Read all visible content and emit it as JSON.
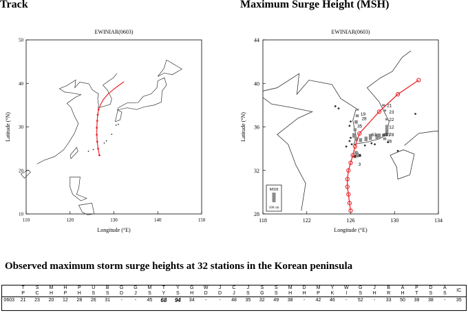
{
  "headings": {
    "track": "Track",
    "msh": "Maximum Surge Height (MSH)"
  },
  "track_map": {
    "title": "EWINIAR(0603)",
    "xlabel": "Longitude (°E)",
    "ylabel": "Latitude (°N)",
    "x_ticks": [
      "110",
      "120",
      "130",
      "140",
      "150"
    ],
    "y_ticks": [
      "50",
      "40",
      "30",
      "20",
      "10"
    ],
    "line_color": "#e8262b",
    "track_points": [
      {
        "lon": 126.7,
        "lat": 23.5
      },
      {
        "lon": 126.4,
        "lat": 25.0
      },
      {
        "lon": 126.2,
        "lat": 26.6
      },
      {
        "lon": 126.1,
        "lat": 28.2
      },
      {
        "lon": 126.1,
        "lat": 29.8
      },
      {
        "lon": 126.2,
        "lat": 31.4
      },
      {
        "lon": 126.3,
        "lat": 32.8
      },
      {
        "lon": 126.5,
        "lat": 34.0
      },
      {
        "lon": 127.0,
        "lat": 35.2
      },
      {
        "lon": 127.6,
        "lat": 36.3
      },
      {
        "lon": 128.6,
        "lat": 37.5
      },
      {
        "lon": 130.0,
        "lat": 38.7
      },
      {
        "lon": 131.2,
        "lat": 39.6
      },
      {
        "lon": 132.3,
        "lat": 40.4
      }
    ]
  },
  "msh_map": {
    "title": "EWINIAR(0603)",
    "xlabel": "Longitude (°E)",
    "ylabel": "Latitude (°N)",
    "x_ticks": [
      "118",
      "122",
      "126",
      "130",
      "134"
    ],
    "y_ticks": [
      "44",
      "40",
      "36",
      "32",
      "28"
    ],
    "line_color": "#e8262b",
    "bar_color": "#8c8c8c",
    "legend_label": "MSH",
    "legend_scale": "100 cm",
    "track_points": [
      {
        "lon": 126.0,
        "lat": 28.3
      },
      {
        "lon": 125.9,
        "lat": 29.0
      },
      {
        "lon": 125.8,
        "lat": 29.8
      },
      {
        "lon": 125.7,
        "lat": 30.5
      },
      {
        "lon": 125.7,
        "lat": 31.2
      },
      {
        "lon": 125.8,
        "lat": 32.0
      },
      {
        "lon": 126.0,
        "lat": 32.7
      },
      {
        "lon": 126.2,
        "lat": 33.4
      },
      {
        "lon": 126.4,
        "lat": 34.2
      },
      {
        "lon": 126.8,
        "lat": 35.4
      },
      {
        "lon": 128.6,
        "lat": 37.4
      },
      {
        "lon": 130.3,
        "lat": 39.0
      },
      {
        "lon": 132.2,
        "lat": 40.3
      }
    ],
    "surge_labels": [
      {
        "text": "21",
        "lon": 129.3,
        "lat": 38.0
      },
      {
        "text": "23",
        "lon": 129.5,
        "lat": 37.4
      },
      {
        "text": "19",
        "lon": 126.9,
        "lat": 37.2
      },
      {
        "text": "28",
        "lon": 127.0,
        "lat": 36.8
      },
      {
        "text": "22",
        "lon": 129.5,
        "lat": 36.7
      },
      {
        "text": "35",
        "lon": 126.6,
        "lat": 36.1
      },
      {
        "text": "12",
        "lon": 129.5,
        "lat": 36.0
      },
      {
        "text": "45",
        "lon": 128.9,
        "lat": 35.3
      },
      {
        "text": "31",
        "lon": 129.2,
        "lat": 35.3
      },
      {
        "text": "78",
        "lon": 129.5,
        "lat": 35.3
      },
      {
        "text": "63",
        "lon": 127.9,
        "lat": 35.3
      },
      {
        "text": "26",
        "lon": 129.3,
        "lat": 34.7
      },
      {
        "text": "2",
        "lon": 126.3,
        "lat": 33.3
      },
      {
        "text": "3",
        "lon": 126.7,
        "lat": 32.6
      }
    ],
    "surge_bars": [
      {
        "lon": 129.0,
        "lat": 37.9,
        "msh": 21
      },
      {
        "lon": 129.1,
        "lat": 37.4,
        "msh": 23
      },
      {
        "lon": 126.6,
        "lat": 37.5,
        "msh": 19
      },
      {
        "lon": 126.6,
        "lat": 36.9,
        "msh": 28
      },
      {
        "lon": 129.3,
        "lat": 36.6,
        "msh": 22
      },
      {
        "lon": 126.5,
        "lat": 36.3,
        "msh": 35
      },
      {
        "lon": 129.3,
        "lat": 36.0,
        "msh": 12
      },
      {
        "lon": 126.4,
        "lat": 35.6,
        "msh": 32
      },
      {
        "lon": 126.3,
        "lat": 35.0,
        "msh": 49
      },
      {
        "lon": 126.5,
        "lat": 34.7,
        "msh": 38
      },
      {
        "lon": 126.9,
        "lat": 34.6,
        "msh": 42
      },
      {
        "lon": 127.4,
        "lat": 34.7,
        "msh": 46
      },
      {
        "lon": 127.8,
        "lat": 34.8,
        "msh": 63
      },
      {
        "lon": 128.4,
        "lat": 34.9,
        "msh": 52
      },
      {
        "lon": 128.6,
        "lat": 35.0,
        "msh": 45
      },
      {
        "lon": 129.0,
        "lat": 35.1,
        "msh": 31
      },
      {
        "lon": 129.3,
        "lat": 35.3,
        "msh": 78
      },
      {
        "lon": 129.1,
        "lat": 34.8,
        "msh": 26
      },
      {
        "lon": 126.5,
        "lat": 33.5,
        "msh": 33
      },
      {
        "lon": 126.6,
        "lat": 33.2,
        "msh": 50
      }
    ]
  },
  "observations": {
    "title": "Observed maximum storm surge heights at 32 stations in the Korean peninsula",
    "station_codes": [
      [
        "T",
        "P"
      ],
      [
        "S",
        "C"
      ],
      [
        "M",
        "H"
      ],
      [
        "H",
        "P"
      ],
      [
        "P",
        "H"
      ],
      [
        "U",
        "S"
      ],
      [
        "B",
        "S"
      ],
      [
        "G",
        "D"
      ],
      [
        "G",
        "J"
      ],
      [
        "M",
        "S"
      ],
      [
        "T",
        "Y"
      ],
      [
        "Y",
        "S"
      ],
      [
        "G",
        "H"
      ],
      [
        "W",
        "D"
      ],
      [
        "J",
        "D"
      ],
      [
        "C",
        "J"
      ],
      [
        "J",
        "S"
      ],
      [
        "S",
        "G"
      ],
      [
        "S",
        "S"
      ],
      [
        "M",
        "H"
      ],
      [
        "D",
        "H"
      ],
      [
        "M",
        "P"
      ],
      [
        "Y",
        "K"
      ],
      [
        "W",
        "I"
      ],
      [
        "G",
        "S"
      ],
      [
        "J",
        "H"
      ],
      [
        "B",
        "R"
      ],
      [
        "A",
        "H"
      ],
      [
        "P",
        "T"
      ],
      [
        "D",
        "S"
      ],
      [
        "A",
        "S"
      ],
      [
        "IC"
      ]
    ],
    "typhoon_id": "0603",
    "values": [
      "21",
      "23",
      "20",
      "12",
      "28",
      "26",
      "31",
      "-",
      "-",
      "45",
      "68",
      "94",
      "34",
      "-",
      "-",
      "48",
      "35",
      "32",
      "49",
      "38",
      "-",
      "42",
      "46",
      "-",
      "52",
      "-",
      "33",
      "50",
      "38",
      "38",
      "-",
      "35"
    ],
    "highlighted_indices": [
      10,
      11
    ]
  }
}
